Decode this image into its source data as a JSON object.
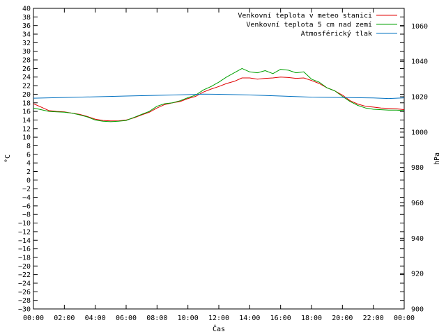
{
  "chart_data": {
    "type": "line",
    "xlabel": "Čas",
    "ylabel_left": "°C",
    "ylabel_right": "hPa",
    "x_ticks": [
      "00:00",
      "02:00",
      "04:00",
      "06:00",
      "08:00",
      "10:00",
      "12:00",
      "14:00",
      "16:00",
      "18:00",
      "20:00",
      "22:00",
      "00:00"
    ],
    "y_left_ticks": [
      40,
      38,
      36,
      34,
      32,
      30,
      28,
      26,
      24,
      22,
      20,
      18,
      16,
      14,
      12,
      10,
      8,
      6,
      4,
      2,
      0,
      -2,
      -4,
      -6,
      -8,
      -10,
      -12,
      -14,
      -16,
      -18,
      -20,
      -22,
      -24,
      -26,
      -28,
      -30
    ],
    "y_right_ticks": [
      1060,
      1040,
      1020,
      1000,
      980,
      960,
      940,
      920,
      900
    ],
    "ylim_left": [
      -30,
      40
    ],
    "ylim_right": [
      900,
      1070
    ],
    "xlim_hours": [
      0,
      24
    ],
    "grid": false,
    "legend_position": "top-right",
    "series": [
      {
        "name": "Venkovní teplota v meteo stanici",
        "axis": "left",
        "color": "#e00000",
        "x": [
          0,
          0.5,
          1,
          1.5,
          2,
          2.5,
          3,
          3.5,
          4,
          4.5,
          5,
          5.5,
          6,
          6.5,
          7,
          7.5,
          8,
          8.5,
          9,
          9.5,
          10,
          10.5,
          11,
          11.5,
          12,
          12.5,
          13,
          13.5,
          14,
          14.5,
          15,
          15.5,
          16,
          16.5,
          17,
          17.5,
          18,
          18.5,
          19,
          19.5,
          20,
          20.5,
          21,
          21.5,
          22,
          22.5,
          23,
          23.5,
          24
        ],
        "values": [
          17.8,
          17.0,
          16.2,
          16.0,
          15.9,
          15.6,
          15.3,
          14.8,
          14.2,
          13.9,
          13.8,
          13.8,
          14.0,
          14.5,
          15.2,
          15.8,
          16.8,
          17.6,
          18.0,
          18.3,
          19.0,
          19.5,
          20.5,
          21.2,
          21.8,
          22.5,
          23.0,
          23.8,
          23.8,
          23.5,
          23.7,
          23.8,
          24.0,
          23.9,
          23.7,
          23.8,
          23.2,
          22.5,
          21.5,
          20.8,
          19.8,
          18.5,
          17.7,
          17.2,
          17.0,
          16.8,
          16.7,
          16.6,
          16.4
        ]
      },
      {
        "name": "Venkovní teplota 5 cm nad zemí",
        "axis": "left",
        "color": "#00a000",
        "x": [
          0,
          0.5,
          1,
          1.5,
          2,
          2.5,
          3,
          3.5,
          4,
          4.5,
          5,
          5.5,
          6,
          6.5,
          7,
          7.5,
          8,
          8.5,
          9,
          9.5,
          10,
          10.5,
          11,
          11.5,
          12,
          12.5,
          13,
          13.5,
          14,
          14.5,
          15,
          15.5,
          16,
          16.5,
          17,
          17.5,
          18,
          18.5,
          19,
          19.5,
          20,
          20.5,
          21,
          21.5,
          22,
          22.5,
          23,
          23.5,
          24
        ],
        "values": [
          16.8,
          16.4,
          16.0,
          15.9,
          15.8,
          15.6,
          15.2,
          14.7,
          14.0,
          13.7,
          13.6,
          13.7,
          13.9,
          14.6,
          15.3,
          16.0,
          17.2,
          17.8,
          18.0,
          18.5,
          19.2,
          19.8,
          21.0,
          21.8,
          22.8,
          24.0,
          25.0,
          26.0,
          25.2,
          25.0,
          25.5,
          24.8,
          25.8,
          25.6,
          25.0,
          25.2,
          23.5,
          22.8,
          21.5,
          20.8,
          19.5,
          18.3,
          17.4,
          16.8,
          16.5,
          16.4,
          16.3,
          16.3,
          16.2
        ]
      },
      {
        "name": "Atmosférický tlak",
        "axis": "right",
        "color": "#0070c0",
        "x": [
          0,
          2,
          4,
          6,
          8,
          10,
          11,
          12,
          14,
          16,
          18,
          20,
          22,
          23,
          24
        ],
        "values": [
          1019.2,
          1019.6,
          1020.0,
          1020.4,
          1020.8,
          1021.2,
          1021.5,
          1021.4,
          1021.0,
          1020.4,
          1019.8,
          1019.6,
          1019.3,
          1019.0,
          1019.4
        ]
      }
    ]
  }
}
